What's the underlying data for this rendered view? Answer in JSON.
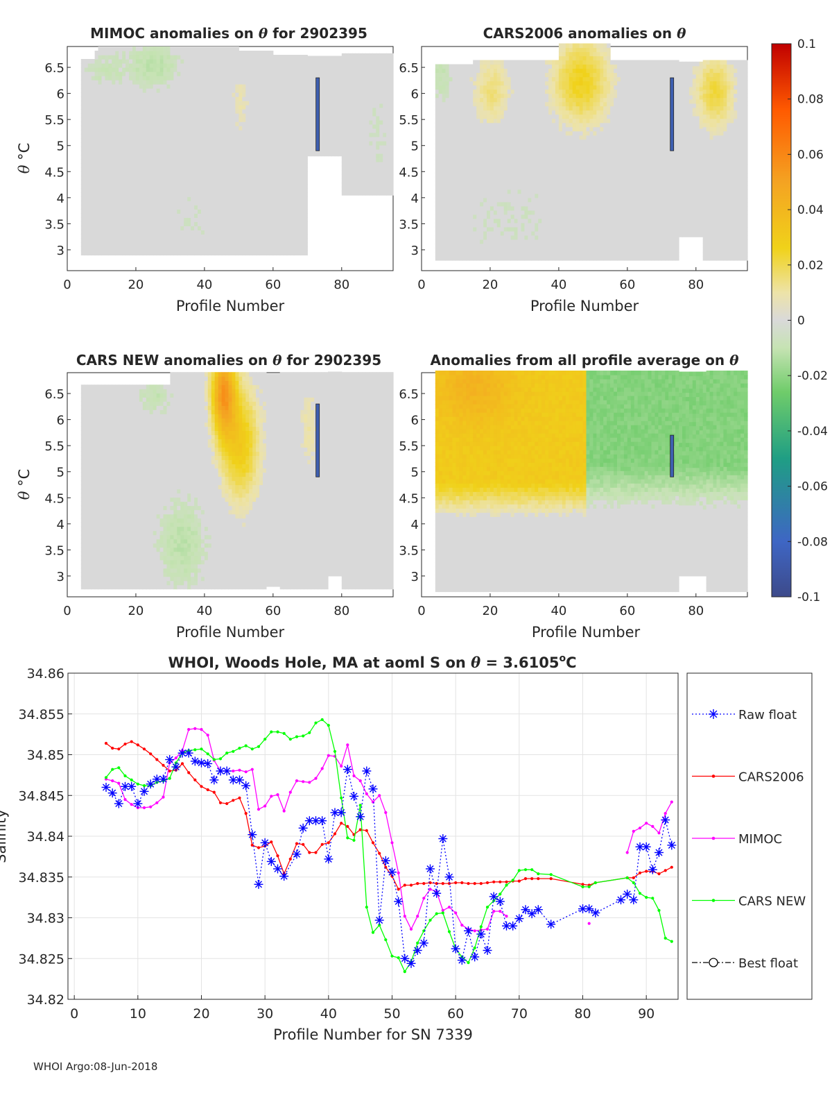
{
  "footer": "WHOI Argo:08-Jun-2018",
  "chart_data": [
    {
      "type": "heatmap",
      "title_parts": [
        "MIMOC anomalies on ",
        "θ",
        "  for 2902395"
      ],
      "xlabel": "Profile Number",
      "ylabel_parts": [
        "θ",
        " °C"
      ],
      "xlim": [
        0,
        95
      ],
      "ylim": [
        2.6,
        6.9
      ],
      "xticks": [
        0,
        20,
        40,
        60,
        80
      ],
      "yticks": [
        "3",
        "3.5",
        "4",
        "4.5",
        "5",
        "5.5",
        "6",
        "6.5"
      ],
      "pattern": "mostly near-zero anomalies (grey) with scattered small negatives (green) near the top and a strong negative streak near profile 73"
    },
    {
      "type": "heatmap",
      "title_parts": [
        "CARS2006 anomalies on ",
        "θ",
        ""
      ],
      "xlabel": "Profile Number",
      "xlim": [
        0,
        95
      ],
      "ylim": [
        2.6,
        6.9
      ],
      "xticks": [
        0,
        20,
        40,
        60,
        80
      ],
      "yticks": [
        "3",
        "3.5",
        "4",
        "4.5",
        "5",
        "5.5",
        "6",
        "6.5"
      ],
      "pattern": "positive anomalies (yellow) in upper levels near profiles 15-25 and 40-60, strong negative streak near profile 73"
    },
    {
      "type": "heatmap",
      "title_parts": [
        "CARS NEW anomalies on ",
        "θ",
        " for 2902395"
      ],
      "xlabel": "Profile Number",
      "ylabel_parts": [
        "θ",
        " °C"
      ],
      "xlim": [
        0,
        95
      ],
      "ylim": [
        2.6,
        6.9
      ],
      "xticks": [
        0,
        20,
        40,
        60,
        80
      ],
      "yticks": [
        "3",
        "3.5",
        "4",
        "4.5",
        "5",
        "5.5",
        "6",
        "6.5"
      ],
      "pattern": "positive anomalies (orange) near profiles 42-50 at upper levels, light green at depth near profiles 25-40"
    },
    {
      "type": "heatmap",
      "title_parts": [
        "Anomalies from all profile average on ",
        "θ",
        ""
      ],
      "xlabel": "Profile Number",
      "xlim": [
        0,
        95
      ],
      "ylim": [
        2.6,
        6.9
      ],
      "xticks": [
        0,
        20,
        40,
        60,
        80
      ],
      "yticks": [
        "3",
        "3.5",
        "4",
        "4.5",
        "5",
        "5.5",
        "6",
        "6.5"
      ],
      "pattern": "positive anomalies (yellow/orange) for profiles 0-48 above ~4.2°C, negative anomalies (green) for profiles 48-95"
    },
    {
      "type": "colorbar",
      "range": [
        -0.1,
        0.1
      ],
      "ticks": [
        "0.1",
        "0.08",
        "0.06",
        "0.04",
        "0.02",
        "0",
        "-0.02",
        "-0.04",
        "-0.06",
        "-0.08",
        "-0.1"
      ],
      "colormap": "parula-like: blue-green-grey-yellow-red"
    },
    {
      "type": "line",
      "title_parts": [
        "WHOI, Woods Hole, MA at aoml S on ",
        "θ",
        " = 3.6105",
        "o",
        "C"
      ],
      "xlabel": "Profile Number for SN 7339",
      "ylabel": "Salinity",
      "xlim": [
        -1,
        95
      ],
      "ylim": [
        34.82,
        34.86
      ],
      "xticks": [
        0,
        10,
        20,
        30,
        40,
        50,
        60,
        70,
        80,
        90
      ],
      "yticks": [
        "34.82",
        "34.825",
        "34.83",
        "34.835",
        "34.84",
        "34.845",
        "34.85",
        "34.855",
        "34.86"
      ],
      "grid": true,
      "legend_position": "right-outside",
      "series": [
        {
          "name": "Raw float",
          "color": "#0000ff",
          "style": "dotted",
          "marker": "asterisk",
          "x": [
            5,
            6,
            7,
            8,
            9,
            10,
            11,
            12,
            13,
            14,
            15,
            16,
            17,
            18,
            19,
            20,
            21,
            22,
            23,
            24,
            25,
            26,
            27,
            28,
            29,
            30,
            31,
            32,
            33,
            35,
            36,
            37,
            38,
            39,
            40,
            41,
            42,
            43,
            44,
            45,
            46,
            47,
            48,
            49,
            50,
            51,
            52,
            53,
            54,
            55,
            56,
            57,
            58,
            59,
            60,
            61,
            62,
            63,
            64,
            65,
            66,
            67,
            68,
            69,
            70,
            71,
            72,
            73,
            75,
            80,
            81,
            82,
            86,
            87,
            88,
            89,
            90,
            91,
            92,
            93,
            94
          ],
          "values": [
            34.846,
            34.8453,
            34.844,
            34.8461,
            34.8461,
            34.844,
            34.8455,
            34.8464,
            34.847,
            34.847,
            34.8494,
            34.8485,
            34.8502,
            34.8502,
            34.8492,
            34.849,
            34.8489,
            34.8469,
            34.848,
            34.848,
            34.8469,
            34.8469,
            34.8462,
            34.8402,
            34.8341,
            34.8392,
            34.8369,
            34.836,
            34.8351,
            34.8378,
            34.841,
            34.8419,
            34.8419,
            34.8419,
            34.8372,
            34.8429,
            34.8429,
            34.8482,
            34.8449,
            34.8424,
            34.848,
            34.8458,
            34.8297,
            34.837,
            34.8356,
            34.832,
            34.825,
            34.8244,
            34.826,
            34.8269,
            34.836,
            34.833,
            34.8397,
            34.835,
            34.8262,
            34.8248,
            34.8284,
            34.8252,
            34.828,
            34.826,
            34.8326,
            34.832,
            34.829,
            34.829,
            34.8299,
            34.831,
            34.8305,
            34.831,
            34.8292,
            34.8311,
            34.8311,
            34.8306,
            34.8322,
            34.8329,
            34.8322,
            34.8387,
            34.8387,
            34.8359,
            34.838,
            34.842,
            34.8389
          ]
        },
        {
          "name": "CARS2006",
          "color": "#ff0000",
          "style": "solid",
          "marker": "dot",
          "x": [
            5,
            6,
            7,
            8,
            9,
            10,
            11,
            12,
            13,
            14,
            15,
            16,
            17,
            18,
            19,
            20,
            21,
            22,
            23,
            24,
            25,
            26,
            27,
            28,
            29,
            30,
            31,
            32,
            33,
            34,
            35,
            36,
            37,
            38,
            39,
            40,
            41,
            42,
            43,
            44,
            45,
            46,
            47,
            48,
            49,
            50,
            51,
            52,
            53,
            54,
            55,
            56,
            57,
            58,
            59,
            60,
            61,
            62,
            63,
            64,
            65,
            66,
            67,
            68,
            69,
            70,
            71,
            72,
            73,
            75,
            80,
            81,
            82,
            87,
            88,
            89,
            90,
            91,
            92,
            93,
            94
          ],
          "values": [
            34.8514,
            34.8508,
            34.8507,
            34.8513,
            34.8516,
            34.8512,
            34.8507,
            34.8501,
            34.8494,
            34.8487,
            34.848,
            34.8481,
            34.8489,
            34.8478,
            34.8469,
            34.8461,
            34.8457,
            34.8454,
            34.8441,
            34.844,
            34.8444,
            34.8447,
            34.8428,
            34.8389,
            34.8386,
            34.8388,
            34.8393,
            34.8376,
            34.8354,
            34.8372,
            34.8391,
            34.839,
            34.838,
            34.838,
            34.839,
            34.8392,
            34.8403,
            34.8416,
            34.8412,
            34.8402,
            34.8408,
            34.8407,
            34.8392,
            34.8379,
            34.8362,
            34.8351,
            34.8335,
            34.834,
            34.834,
            34.8342,
            34.8342,
            34.8343,
            34.8342,
            34.8342,
            34.8342,
            34.8343,
            34.8343,
            34.8342,
            34.8342,
            34.8342,
            34.8343,
            34.8344,
            34.8344,
            34.8344,
            34.8345,
            34.8345,
            34.8348,
            34.8348,
            34.8348,
            34.8348,
            34.8341,
            34.834,
            34.8343,
            34.8349,
            34.8349,
            34.8355,
            34.8357,
            34.8357,
            34.8354,
            34.8358,
            34.8362
          ]
        },
        {
          "name": "MIMOC",
          "color": "#ff00ff",
          "style": "solid",
          "marker": "dot",
          "x": [
            5,
            6,
            7,
            8,
            9,
            10,
            11,
            12,
            13,
            14,
            15,
            16,
            17,
            18,
            19,
            20,
            21,
            22,
            23,
            24,
            25,
            26,
            27,
            28,
            29,
            30,
            31,
            32,
            33,
            34,
            35,
            36,
            37,
            38,
            39,
            40,
            41,
            42,
            43,
            44,
            45,
            46,
            47,
            48,
            49,
            50,
            51,
            52,
            53,
            54,
            55,
            56,
            57,
            58,
            59,
            60,
            61,
            62,
            63,
            64,
            65,
            66,
            67,
            68,
            69,
            70,
            71,
            72,
            73,
            75,
            80,
            81,
            82,
            87,
            88,
            89,
            90,
            91,
            92,
            93,
            94
          ],
          "values": [
            34.847,
            34.8468,
            34.8465,
            34.8445,
            34.8439,
            34.8435,
            34.8435,
            34.8436,
            34.8441,
            34.8448,
            34.849,
            34.8496,
            34.8505,
            34.8531,
            34.8532,
            34.8531,
            34.8524,
            34.8493,
            34.848,
            34.848,
            34.848,
            34.8481,
            34.8479,
            34.8482,
            34.8433,
            34.8437,
            34.8449,
            34.8451,
            34.8431,
            34.8454,
            34.8468,
            34.8467,
            34.8466,
            34.8471,
            34.8483,
            34.8499,
            34.8498,
            34.8486,
            34.8512,
            34.8474,
            34.8468,
            34.8452,
            34.8442,
            34.845,
            34.8429,
            34.8392,
            34.8355,
            34.8302,
            34.8286,
            34.8302,
            34.8324,
            34.8335,
            34.8332,
            34.8309,
            34.8313,
            34.8306,
            34.8291,
            34.8286,
            34.8284,
            34.8285,
            34.8286,
            34.8308,
            34.8308,
            34.8302,
            null,
            null,
            null,
            null,
            null,
            null,
            null,
            34.8293,
            null,
            34.838,
            34.8406,
            34.841,
            34.8416,
            34.8412,
            34.8404,
            34.8428,
            34.8442
          ]
        },
        {
          "name": "CARS NEW",
          "color": "#00ff00",
          "style": "solid",
          "marker": "dot",
          "x": [
            5,
            6,
            7,
            8,
            9,
            10,
            11,
            12,
            13,
            14,
            15,
            16,
            17,
            18,
            19,
            20,
            21,
            22,
            23,
            24,
            25,
            26,
            27,
            28,
            29,
            30,
            31,
            32,
            33,
            34,
            35,
            36,
            37,
            38,
            39,
            40,
            41,
            42,
            43,
            44,
            45,
            46,
            47,
            48,
            49,
            50,
            51,
            52,
            53,
            54,
            55,
            56,
            57,
            58,
            59,
            60,
            61,
            62,
            63,
            64,
            65,
            66,
            67,
            68,
            69,
            70,
            71,
            72,
            73,
            75,
            80,
            81,
            82,
            87,
            88,
            89,
            90,
            91,
            92,
            93,
            94
          ],
          "values": [
            34.8472,
            34.8482,
            34.8484,
            34.8474,
            34.8469,
            34.8464,
            34.8462,
            34.8462,
            34.8466,
            34.8468,
            34.8471,
            34.849,
            34.8502,
            34.8505,
            34.8506,
            34.8507,
            34.8501,
            34.8494,
            34.8495,
            34.8502,
            34.8504,
            34.8508,
            34.8511,
            34.8507,
            34.851,
            34.8519,
            34.8528,
            34.8528,
            34.8526,
            34.8519,
            34.8522,
            34.8523,
            34.8527,
            34.8539,
            34.8543,
            34.8536,
            34.8504,
            34.8447,
            34.8398,
            34.8395,
            34.8438,
            34.8313,
            34.8282,
            34.8291,
            34.8273,
            34.8253,
            34.8251,
            34.8234,
            34.8246,
            34.8269,
            34.8284,
            34.8297,
            34.8305,
            34.8306,
            34.8283,
            34.8262,
            34.8252,
            34.8245,
            34.8263,
            34.8289,
            34.8313,
            34.8321,
            34.8329,
            34.834,
            34.8346,
            34.8358,
            34.8359,
            34.8359,
            34.8354,
            34.8353,
            34.8338,
            34.8338,
            34.8343,
            34.8349,
            34.8343,
            34.833,
            34.8325,
            34.8324,
            34.8309,
            34.8275,
            34.8271
          ]
        },
        {
          "name": "Best float",
          "color": "#000000",
          "style": "dashdot",
          "marker": "circle",
          "x": [],
          "values": []
        }
      ]
    }
  ]
}
